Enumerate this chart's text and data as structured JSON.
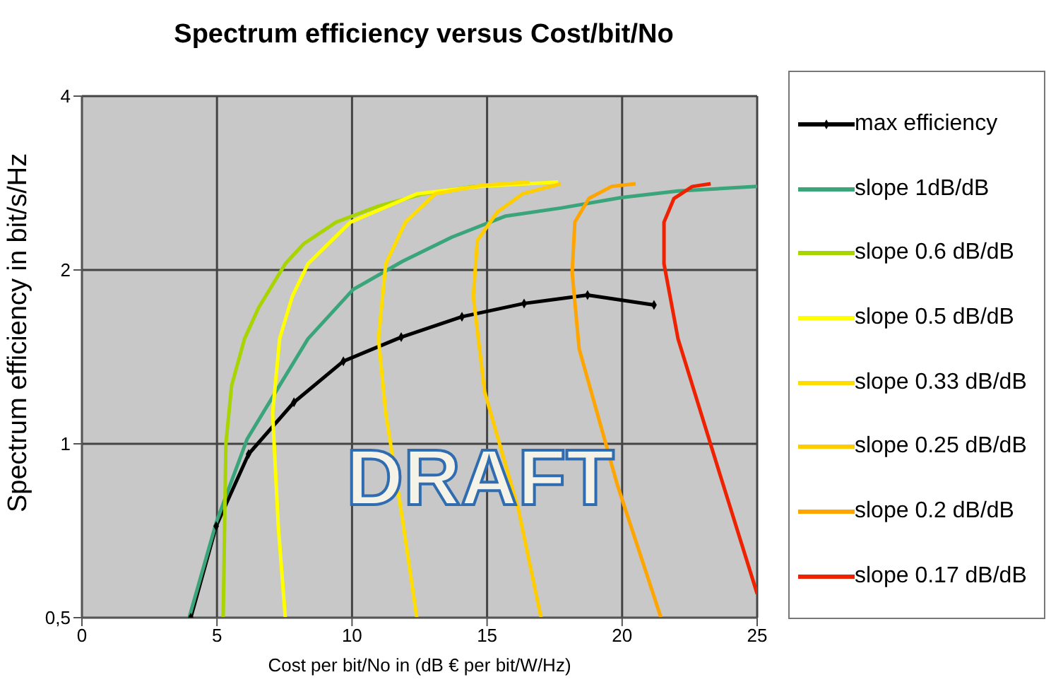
{
  "chart_data": {
    "type": "line",
    "title": "Spectrum efficiency versus Cost/bit/No",
    "xlabel": "Cost per bit/No in (dB € per bit/W/Hz)",
    "ylabel": "Spectrum efficiency in bit/s/Hz",
    "log": "y",
    "xlim": [
      0,
      25
    ],
    "xticks": [
      0,
      5,
      10,
      15,
      20,
      25
    ],
    "ylim": [
      0.5,
      4
    ],
    "yticks": [
      {
        "value": 0.5,
        "label": "0,5"
      },
      1,
      2,
      4
    ],
    "grid": true,
    "legend": "right",
    "line_style": "solid",
    "marker": "none",
    "annotations": [
      "DRAFT"
    ],
    "series": [
      {
        "name": "max efficiency",
        "color": "#000000",
        "marker": "diamond",
        "x": [
          4.03,
          4.97,
          6.17,
          7.85,
          9.68,
          11.82,
          14.07,
          16.37,
          18.72,
          21.18
        ],
        "values": [
          0.5,
          0.72,
          0.96,
          1.18,
          1.39,
          1.53,
          1.66,
          1.75,
          1.81,
          1.74
        ]
      },
      {
        "name": "slope 1dB/dB",
        "color": "#3aa57a",
        "x": [
          3.97,
          4.97,
          6.12,
          7.22,
          8.37,
          10.04,
          11.87,
          13.7,
          15.69,
          17.73,
          19.98,
          22.07,
          25
        ],
        "values": [
          0.5,
          0.73,
          1.02,
          1.24,
          1.52,
          1.85,
          2.07,
          2.28,
          2.48,
          2.56,
          2.67,
          2.74,
          2.79
        ]
      },
      {
        "name": "slope 0.6 dB/dB",
        "color": "#a8d400",
        "x": [
          5.23,
          5.33,
          5.54,
          6.02,
          6.54,
          7.53,
          8.21,
          9.41,
          10.98,
          12.66,
          14.49,
          16.32
        ],
        "values": [
          0.5,
          1.0,
          1.26,
          1.52,
          1.72,
          2.05,
          2.22,
          2.42,
          2.58,
          2.71,
          2.79,
          2.82
        ]
      },
      {
        "name": "slope 0.5 dB/dB",
        "color": "#ffff00",
        "x": [
          7.53,
          7.27,
          7.06,
          7.32,
          7.79,
          8.37,
          9.94,
          12.4,
          14.75,
          17.63
        ],
        "values": [
          0.5,
          0.72,
          1.13,
          1.52,
          1.8,
          2.05,
          2.42,
          2.71,
          2.79,
          2.84
        ]
      },
      {
        "name": "slope 0.33 dB/dB",
        "color": "#ffdd00",
        "x": [
          12.4,
          11.87,
          11.25,
          10.98,
          11.25,
          11.98,
          13.08,
          14.75,
          16.58
        ],
        "values": [
          0.5,
          0.74,
          1.13,
          1.52,
          2.05,
          2.42,
          2.71,
          2.8,
          2.84
        ]
      },
      {
        "name": "slope 0.25 dB/dB",
        "color": "#ffcc00",
        "x": [
          17.0,
          16.16,
          14.91,
          14.49,
          14.64,
          15.38,
          16.32,
          17.73
        ],
        "values": [
          0.5,
          0.77,
          1.23,
          1.8,
          2.25,
          2.52,
          2.71,
          2.82
        ]
      },
      {
        "name": "slope 0.2 dB/dB",
        "color": "#ffa500",
        "x": [
          21.44,
          19.82,
          18.41,
          18.15,
          18.25,
          18.77,
          19.61,
          20.5
        ],
        "values": [
          0.5,
          0.85,
          1.46,
          1.98,
          2.42,
          2.66,
          2.79,
          2.82
        ]
      },
      {
        "name": "slope 0.17 dB/dB",
        "color": "#ee2200",
        "x": [
          25,
          23.48,
          22.07,
          21.55,
          21.55,
          21.92,
          22.6,
          23.28
        ],
        "values": [
          0.55,
          0.93,
          1.52,
          2.05,
          2.42,
          2.66,
          2.79,
          2.82
        ]
      }
    ]
  }
}
